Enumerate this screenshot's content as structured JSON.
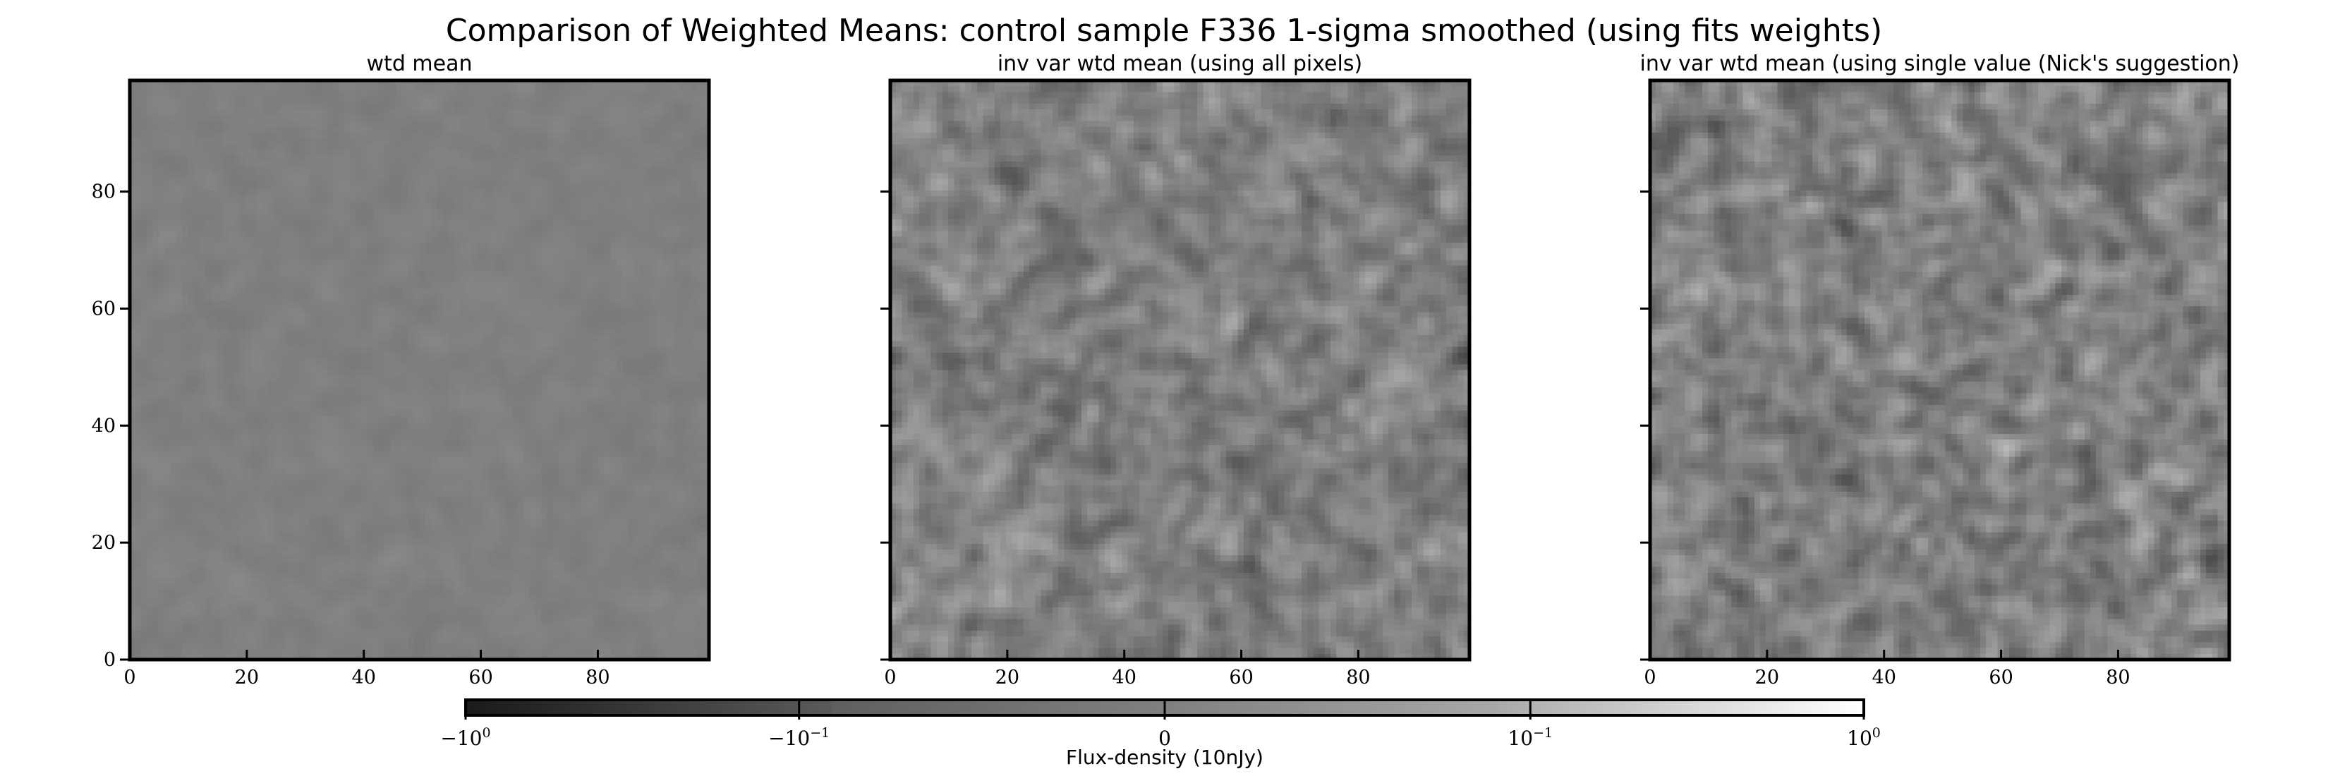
{
  "figure": {
    "suptitle": "Comparison of Weighted Means: control sample F336 1-sigma smoothed (using fits weights)"
  },
  "chart_data": [
    {
      "type": "heatmap",
      "title": "wtd mean",
      "xlabel": "",
      "ylabel": "",
      "xlim": [
        0,
        99
      ],
      "ylim": [
        0,
        99
      ],
      "x_ticks": [
        0,
        20,
        40,
        60,
        80
      ],
      "y_ticks": [
        0,
        20,
        40,
        60,
        80
      ],
      "x_tick_labels": [
        "0",
        "20",
        "40",
        "60",
        "80"
      ],
      "y_tick_labels": [
        "0",
        "20",
        "40",
        "60",
        "80"
      ],
      "show_y_tick_labels": true,
      "grid_size": 100,
      "mean_gray": 0.5,
      "noise_amplitude": 0.015,
      "colormap": "gray"
    },
    {
      "type": "heatmap",
      "title": "inv var wtd mean (using all pixels)",
      "xlabel": "",
      "ylabel": "",
      "xlim": [
        0,
        99
      ],
      "ylim": [
        0,
        99
      ],
      "x_ticks": [
        0,
        20,
        40,
        60,
        80
      ],
      "y_ticks": [
        0,
        20,
        40,
        60,
        80
      ],
      "x_tick_labels": [
        "0",
        "20",
        "40",
        "60",
        "80"
      ],
      "y_tick_labels": [],
      "show_y_tick_labels": false,
      "grid_size": 100,
      "mean_gray": 0.5,
      "noise_amplitude": 0.1,
      "colormap": "gray"
    },
    {
      "type": "heatmap",
      "title": "inv var wtd mean (using single value (Nick's suggestion)",
      "xlabel": "",
      "ylabel": "",
      "xlim": [
        0,
        99
      ],
      "ylim": [
        0,
        99
      ],
      "x_ticks": [
        0,
        20,
        40,
        60,
        80
      ],
      "y_ticks": [
        0,
        20,
        40,
        60,
        80
      ],
      "x_tick_labels": [
        "0",
        "20",
        "40",
        "60",
        "80"
      ],
      "y_tick_labels": [],
      "show_y_tick_labels": false,
      "grid_size": 100,
      "mean_gray": 0.5,
      "noise_amplitude": 0.1,
      "colormap": "gray"
    }
  ],
  "colorbar": {
    "label": "Flux-density (10nJy)",
    "scale": "symlog",
    "range": [
      -1,
      1
    ],
    "ticks": [
      {
        "base": "−10",
        "exp": "0"
      },
      {
        "base": "−10",
        "exp": "−1"
      },
      {
        "base": "0",
        "exp": ""
      },
      {
        "base": "10",
        "exp": "−1"
      },
      {
        "base": "10",
        "exp": "0"
      }
    ],
    "colors": {
      "low": "#000000",
      "high": "#ffffff"
    }
  }
}
